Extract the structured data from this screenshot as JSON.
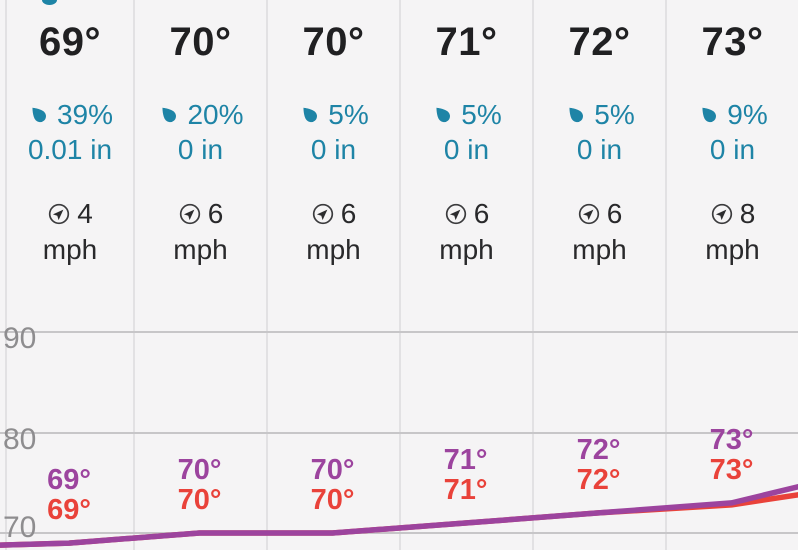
{
  "colors": {
    "background": "#f5f4f5",
    "teal": "#1e84a6",
    "purple": "#9c449e",
    "red": "#e9423a",
    "dark_text": "#202022",
    "axis_gray": "#8e8d8f",
    "gridline": "#c7c6c8",
    "separator": "#e2e1e3"
  },
  "columns": [
    {
      "temperature": "69°",
      "precip_percent": "39%",
      "precip_amount": "0.01 in",
      "wind_speed": "4",
      "wind_unit": "mph"
    },
    {
      "temperature": "70°",
      "precip_percent": "20%",
      "precip_amount": "0 in",
      "wind_speed": "6",
      "wind_unit": "mph"
    },
    {
      "temperature": "70°",
      "precip_percent": "5%",
      "precip_amount": "0 in",
      "wind_speed": "6",
      "wind_unit": "mph"
    },
    {
      "temperature": "71°",
      "precip_percent": "5%",
      "precip_amount": "0 in",
      "wind_speed": "6",
      "wind_unit": "mph"
    },
    {
      "temperature": "72°",
      "precip_percent": "5%",
      "precip_amount": "0 in",
      "wind_speed": "6",
      "wind_unit": "mph"
    },
    {
      "temperature": "73°",
      "precip_percent": "9%",
      "precip_amount": "0 in",
      "wind_speed": "8",
      "wind_unit": "mph"
    }
  ],
  "chart_data": {
    "type": "line",
    "title": "",
    "xlabel": "",
    "ylabel": "",
    "categories": [
      "",
      "",
      "",
      "",
      "",
      ""
    ],
    "series": [
      {
        "name": "purple-series",
        "color": "#9c449e",
        "values": [
          69,
          70,
          70,
          71,
          72,
          73
        ],
        "point_labels": [
          "69°",
          "70°",
          "70°",
          "71°",
          "72°",
          "73°"
        ]
      },
      {
        "name": "red-series",
        "color": "#e9423a",
        "values": [
          69,
          70,
          70,
          71,
          72,
          73
        ],
        "point_labels": [
          "69°",
          "70°",
          "70°",
          "71°",
          "72°",
          "73°"
        ]
      }
    ],
    "y_ticks": [
      "90",
      "80",
      "70"
    ],
    "y_tick_values": [
      90,
      80,
      70
    ],
    "grid": true,
    "legend": false,
    "notes": "purple line drawn above red; lines nearly overlap, diverging slightly at right edge"
  }
}
